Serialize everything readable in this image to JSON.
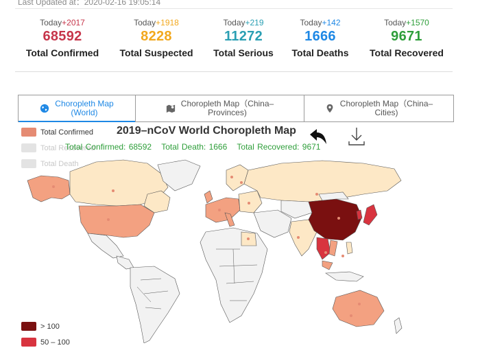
{
  "header": {
    "last_updated": "Last Updated at：2020-02-16 19:05:14"
  },
  "stats": [
    {
      "today_label": "Today",
      "today_delta": "+2017",
      "value": "68592",
      "label": "Total Confirmed",
      "color": "#c6354a",
      "delta_color": "#c6354a"
    },
    {
      "today_label": "Today",
      "today_delta": "+1918",
      "value": "8228",
      "label": "Total Suspected",
      "color": "#f2a81d",
      "delta_color": "#f2a81d"
    },
    {
      "today_label": "Today",
      "today_delta": "+219",
      "value": "11272",
      "label": "Total Serious",
      "color": "#2a9fb3",
      "delta_color": "#2a9fb3"
    },
    {
      "today_label": "Today",
      "today_delta": "+142",
      "value": "1666",
      "label": "Total Deaths",
      "color": "#1e88e5",
      "delta_color": "#1e88e5"
    },
    {
      "today_label": "Today",
      "today_delta": "+1570",
      "value": "9671",
      "label": "Total Recovered",
      "color": "#2e9e3a",
      "delta_color": "#2e9e3a"
    }
  ],
  "tabs": [
    {
      "label_line1": "Choropleth Map",
      "label_line2": "(World)",
      "icon": "globe-icon",
      "active": true
    },
    {
      "label_line1": "Choropleth Map（China–",
      "label_line2": "Provinces)",
      "icon": "map-icon",
      "active": false
    },
    {
      "label_line1": "Choropleth Map（China–",
      "label_line2": "Cities)",
      "icon": "location-pin-icon",
      "active": false
    }
  ],
  "map": {
    "title": "2019–nCoV World Choropleth Map",
    "subtitle": {
      "confirmed": "Total Confirmed: 68592",
      "death": "Total Death: 1666",
      "recovered": "Total Recovered: 9671"
    },
    "series_legend": [
      {
        "label": "Total Confirmed",
        "color": "#e58b73",
        "active": true
      },
      {
        "label": "Total Recovered",
        "color": "#e3e3e3",
        "active": false
      },
      {
        "label": "Total Death",
        "color": "#e3e3e3",
        "active": false
      }
    ],
    "scale_legend": [
      {
        "label": "> 100",
        "color": "#7a1010"
      },
      {
        "label": "50 – 100",
        "color": "#d8343f"
      }
    ],
    "colors": {
      "ocean": "#ffffff",
      "no_data": "#f2f2f2",
      "low": "#fde8c6",
      "mid": "#f3a181",
      "high": "#d8343f",
      "top": "#7a1010",
      "border": "#555555",
      "dot": "#e58b73"
    }
  }
}
